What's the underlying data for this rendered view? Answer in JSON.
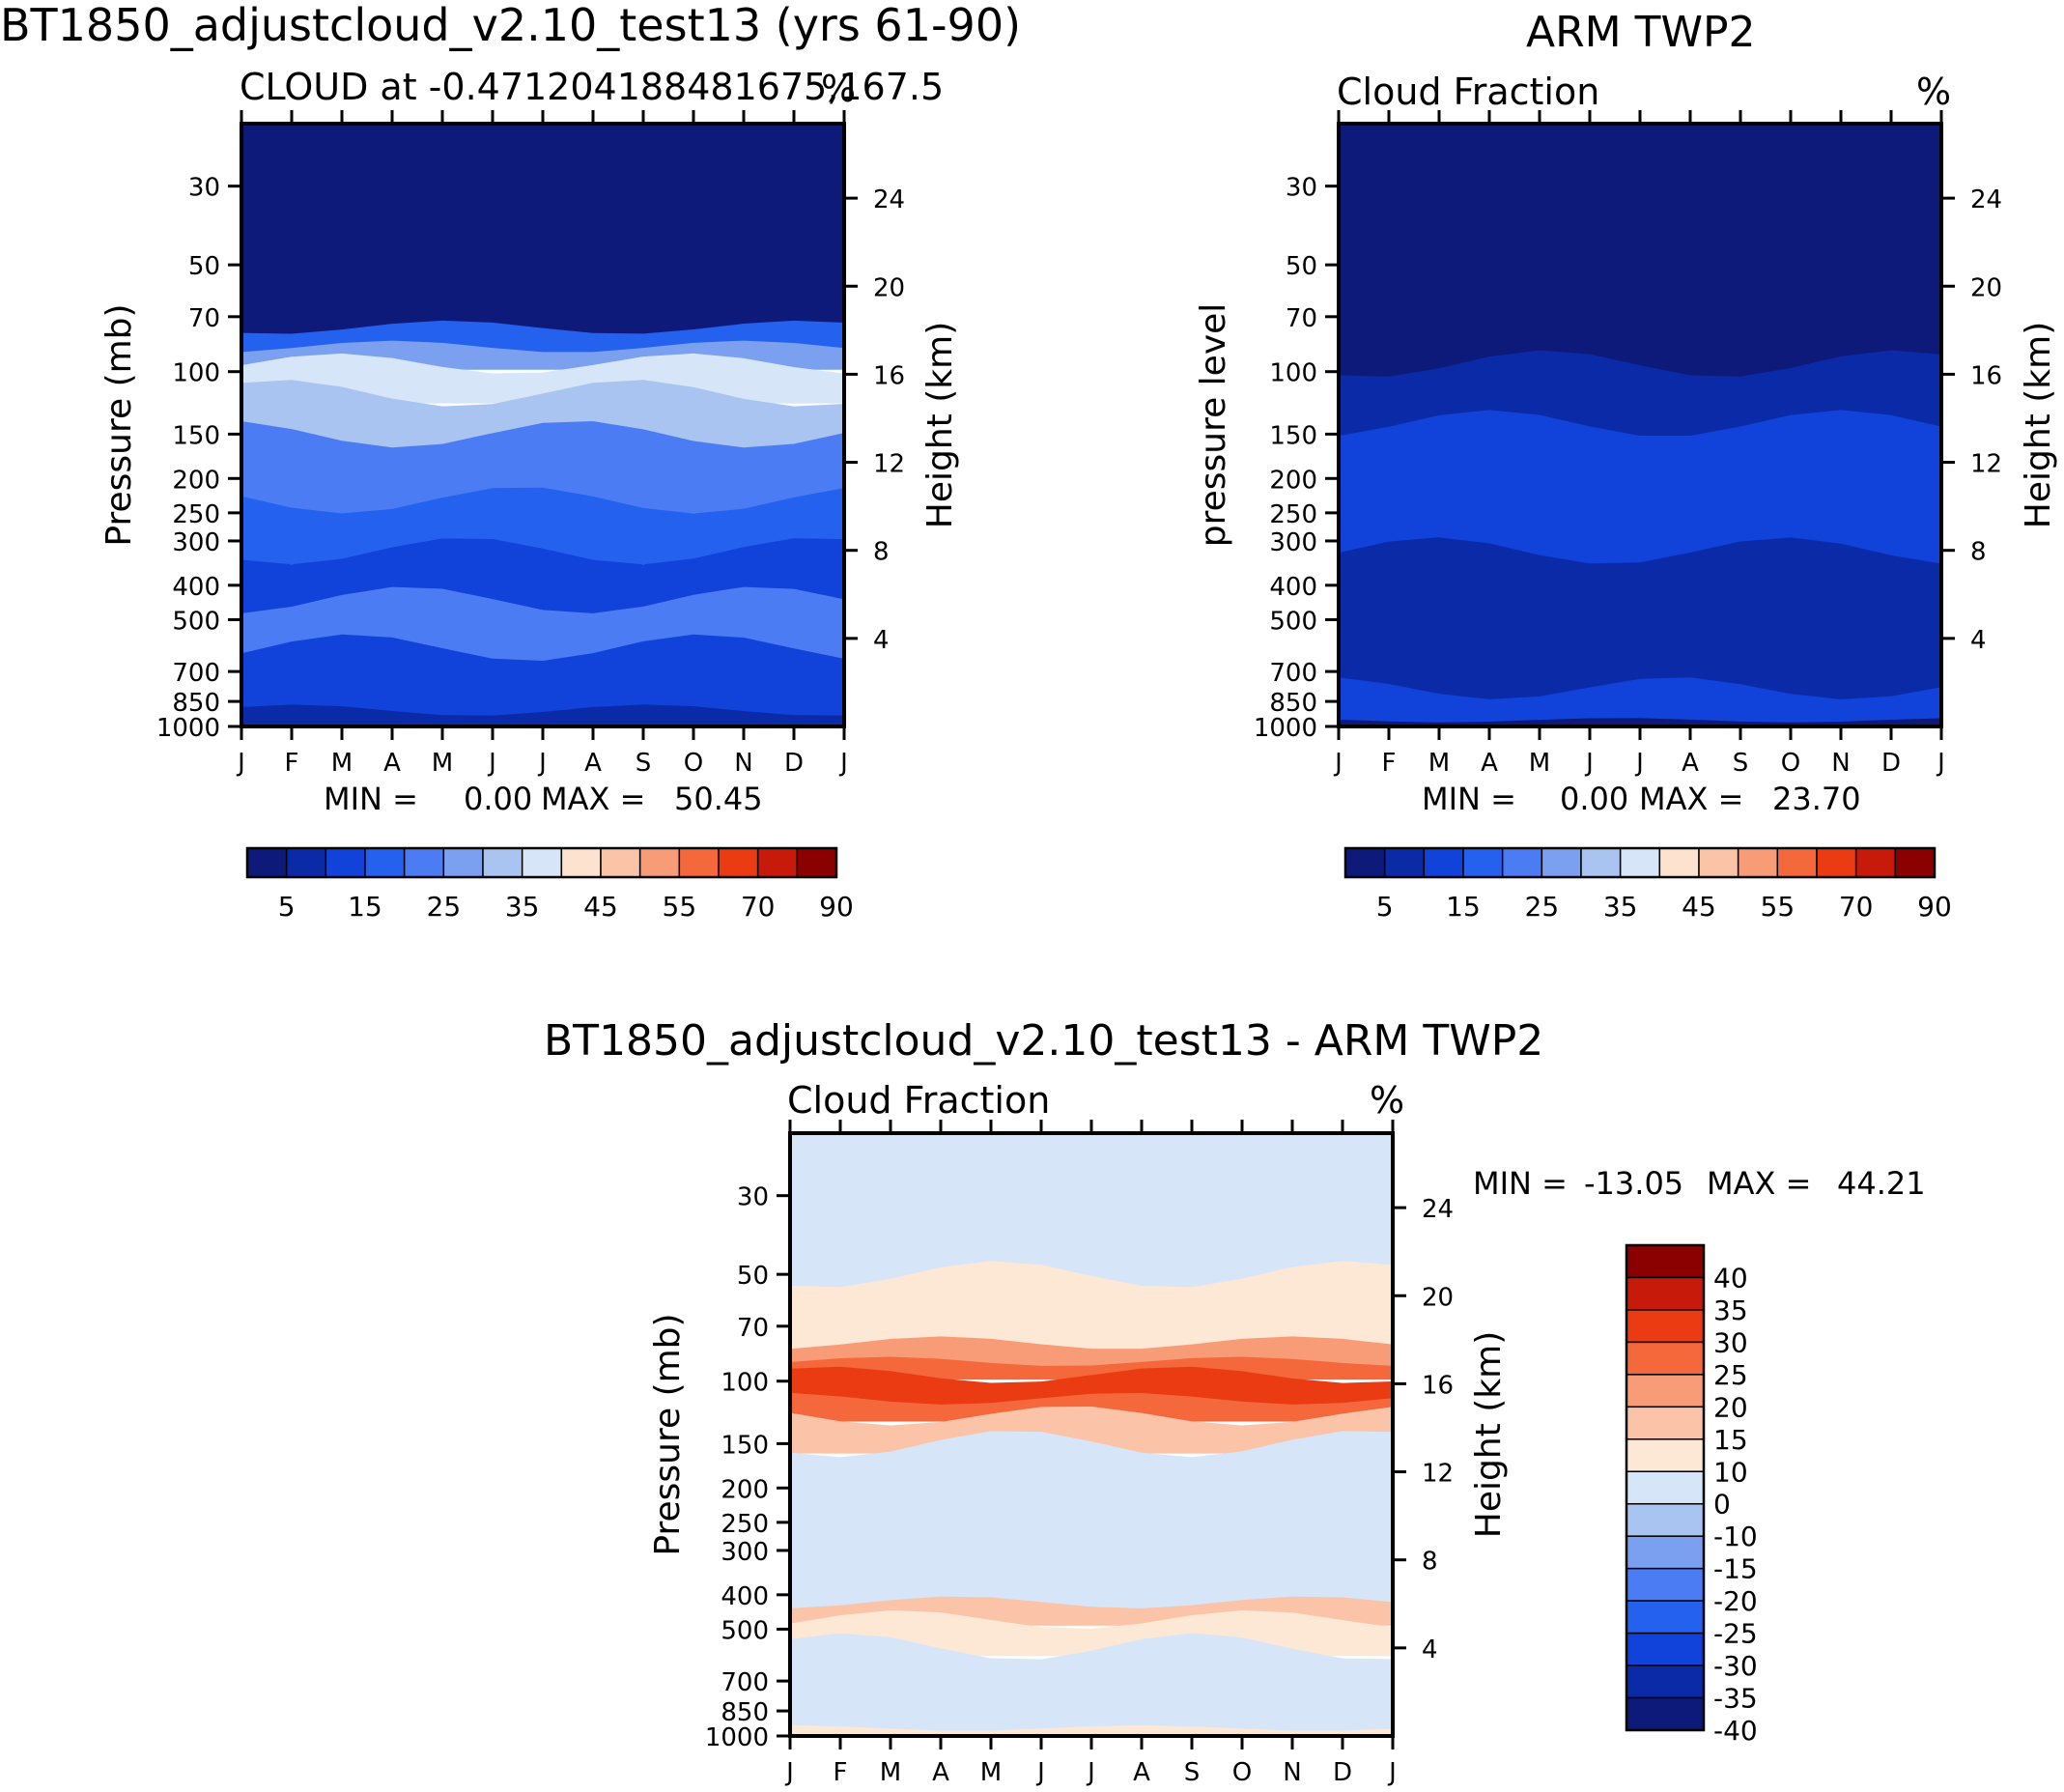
{
  "colors": {
    "cloud_levels": [
      "#0d1a7a",
      "#0b2aa8",
      "#1142d9",
      "#2461ef",
      "#4b7cf4",
      "#7ba0ef",
      "#aac4f2",
      "#d6e6f8",
      "#fde3cf",
      "#fbc4a9",
      "#f89c78",
      "#f4683c",
      "#ea3b12",
      "#c81a0b",
      "#8b0000"
    ],
    "diff_levels": [
      "#0d1a7a",
      "#0b2aa8",
      "#1142d9",
      "#2461ef",
      "#4b7cf4",
      "#7ba0ef",
      "#aac4f2",
      "#d6e6f8",
      "#fde8d6",
      "#fbc4a9",
      "#f89c78",
      "#f4683c",
      "#ea3b12",
      "#c81a0b",
      "#8b0000"
    ],
    "axis": "#000000"
  },
  "chart_data": [
    {
      "id": "model",
      "type": "contour",
      "title": "BT1850_adjustcloud_v2.10_test13 (yrs 61-90)",
      "subtitle": "CLOUD at -0.471204188481675,167.5",
      "units": "%",
      "xlabel": "",
      "ylabel": "Pressure (mb)",
      "y2label": "Height (km)",
      "x_ticks": [
        "J",
        "F",
        "M",
        "A",
        "M",
        "J",
        "J",
        "A",
        "S",
        "O",
        "N",
        "D",
        "J"
      ],
      "pressure_ticks": [
        30,
        50,
        70,
        100,
        150,
        200,
        250,
        300,
        400,
        500,
        700,
        850,
        1000
      ],
      "height_ticks": [
        24,
        20,
        16,
        12,
        8,
        4
      ],
      "min_label": "MIN =",
      "min_value": "0.00",
      "max_label": "MAX =",
      "max_value": "50.45",
      "colorbar_labels": [
        "5",
        "15",
        "25",
        "35",
        "45",
        "55",
        "70",
        "90"
      ],
      "field_bands": [
        {
          "p": [
            20,
            75
          ],
          "level": 0
        },
        {
          "p": [
            75,
            85
          ],
          "level": 3
        },
        {
          "p": [
            85,
            95
          ],
          "level": 5
        },
        {
          "p": [
            95,
            115
          ],
          "level": 7
        },
        {
          "p": [
            115,
            150
          ],
          "level": 6
        },
        {
          "p": [
            150,
            230
          ],
          "level": 4
        },
        {
          "p": [
            230,
            320
          ],
          "level": 3
        },
        {
          "p": [
            320,
            440
          ],
          "level": 2
        },
        {
          "p": [
            440,
            600
          ],
          "level": 4
        },
        {
          "p": [
            600,
            900
          ],
          "level": 2
        },
        {
          "p": [
            900,
            1000
          ],
          "level": 1
        }
      ]
    },
    {
      "id": "obs",
      "type": "contour",
      "title": "ARM TWP2",
      "subtitle": "Cloud Fraction",
      "units": "%",
      "ylabel": "pressure level",
      "y2label": "Height (km)",
      "x_ticks": [
        "J",
        "F",
        "M",
        "A",
        "M",
        "J",
        "J",
        "A",
        "S",
        "O",
        "N",
        "D",
        "J"
      ],
      "pressure_ticks": [
        30,
        50,
        70,
        100,
        150,
        200,
        250,
        300,
        400,
        500,
        700,
        850,
        1000
      ],
      "height_ticks": [
        24,
        20,
        16,
        12,
        8,
        4
      ],
      "min_label": "MIN =",
      "min_value": "0.00",
      "max_label": "MAX =",
      "max_value": "23.70",
      "colorbar_labels": [
        "5",
        "15",
        "25",
        "35",
        "45",
        "55",
        "70",
        "90"
      ],
      "field_bands": [
        {
          "p": [
            20,
            95
          ],
          "level": 0
        },
        {
          "p": [
            95,
            140
          ],
          "level": 1
        },
        {
          "p": [
            140,
            320
          ],
          "level": 2
        },
        {
          "p": [
            320,
            600
          ],
          "level": 1
        },
        {
          "p": [
            600,
            780
          ],
          "level": 1
        },
        {
          "p": [
            780,
            960
          ],
          "level": 2
        },
        {
          "p": [
            960,
            1000
          ],
          "level": 0
        }
      ]
    },
    {
      "id": "diff",
      "type": "contour",
      "title": "BT1850_adjustcloud_v2.10_test13 - ARM TWP2",
      "subtitle": "Cloud Fraction",
      "units": "%",
      "ylabel": "Pressure (mb)",
      "y2label": "Height (km)",
      "x_ticks": [
        "J",
        "F",
        "M",
        "A",
        "M",
        "J",
        "J",
        "A",
        "S",
        "O",
        "N",
        "D",
        "J"
      ],
      "pressure_ticks": [
        30,
        50,
        70,
        100,
        150,
        200,
        250,
        300,
        400,
        500,
        700,
        850,
        1000
      ],
      "height_ticks": [
        24,
        20,
        16,
        12,
        8,
        4
      ],
      "min_label": "MIN =",
      "min_value": "-13.05",
      "max_label": "MAX =",
      "max_value": "44.21",
      "colorbar_labels": [
        "40",
        "35",
        "30",
        "25",
        "20",
        "15",
        "10",
        "0",
        "-10",
        "-15",
        "-20",
        "-25",
        "-30",
        "-35",
        "-40"
      ],
      "field_bands": [
        {
          "p": [
            20,
            50
          ],
          "level": 7
        },
        {
          "p": [
            50,
            78
          ],
          "level": 8
        },
        {
          "p": [
            78,
            88
          ],
          "level": 10
        },
        {
          "p": [
            88,
            96
          ],
          "level": 11
        },
        {
          "p": [
            96,
            112
          ],
          "level": 12
        },
        {
          "p": [
            112,
            125
          ],
          "level": 11
        },
        {
          "p": [
            125,
            150
          ],
          "level": 9
        },
        {
          "p": [
            150,
            420
          ],
          "level": 7
        },
        {
          "p": [
            420,
            470
          ],
          "level": 9
        },
        {
          "p": [
            470,
            560
          ],
          "level": 8
        },
        {
          "p": [
            560,
            950
          ],
          "level": 7
        },
        {
          "p": [
            950,
            1000
          ],
          "level": 8
        }
      ]
    }
  ]
}
